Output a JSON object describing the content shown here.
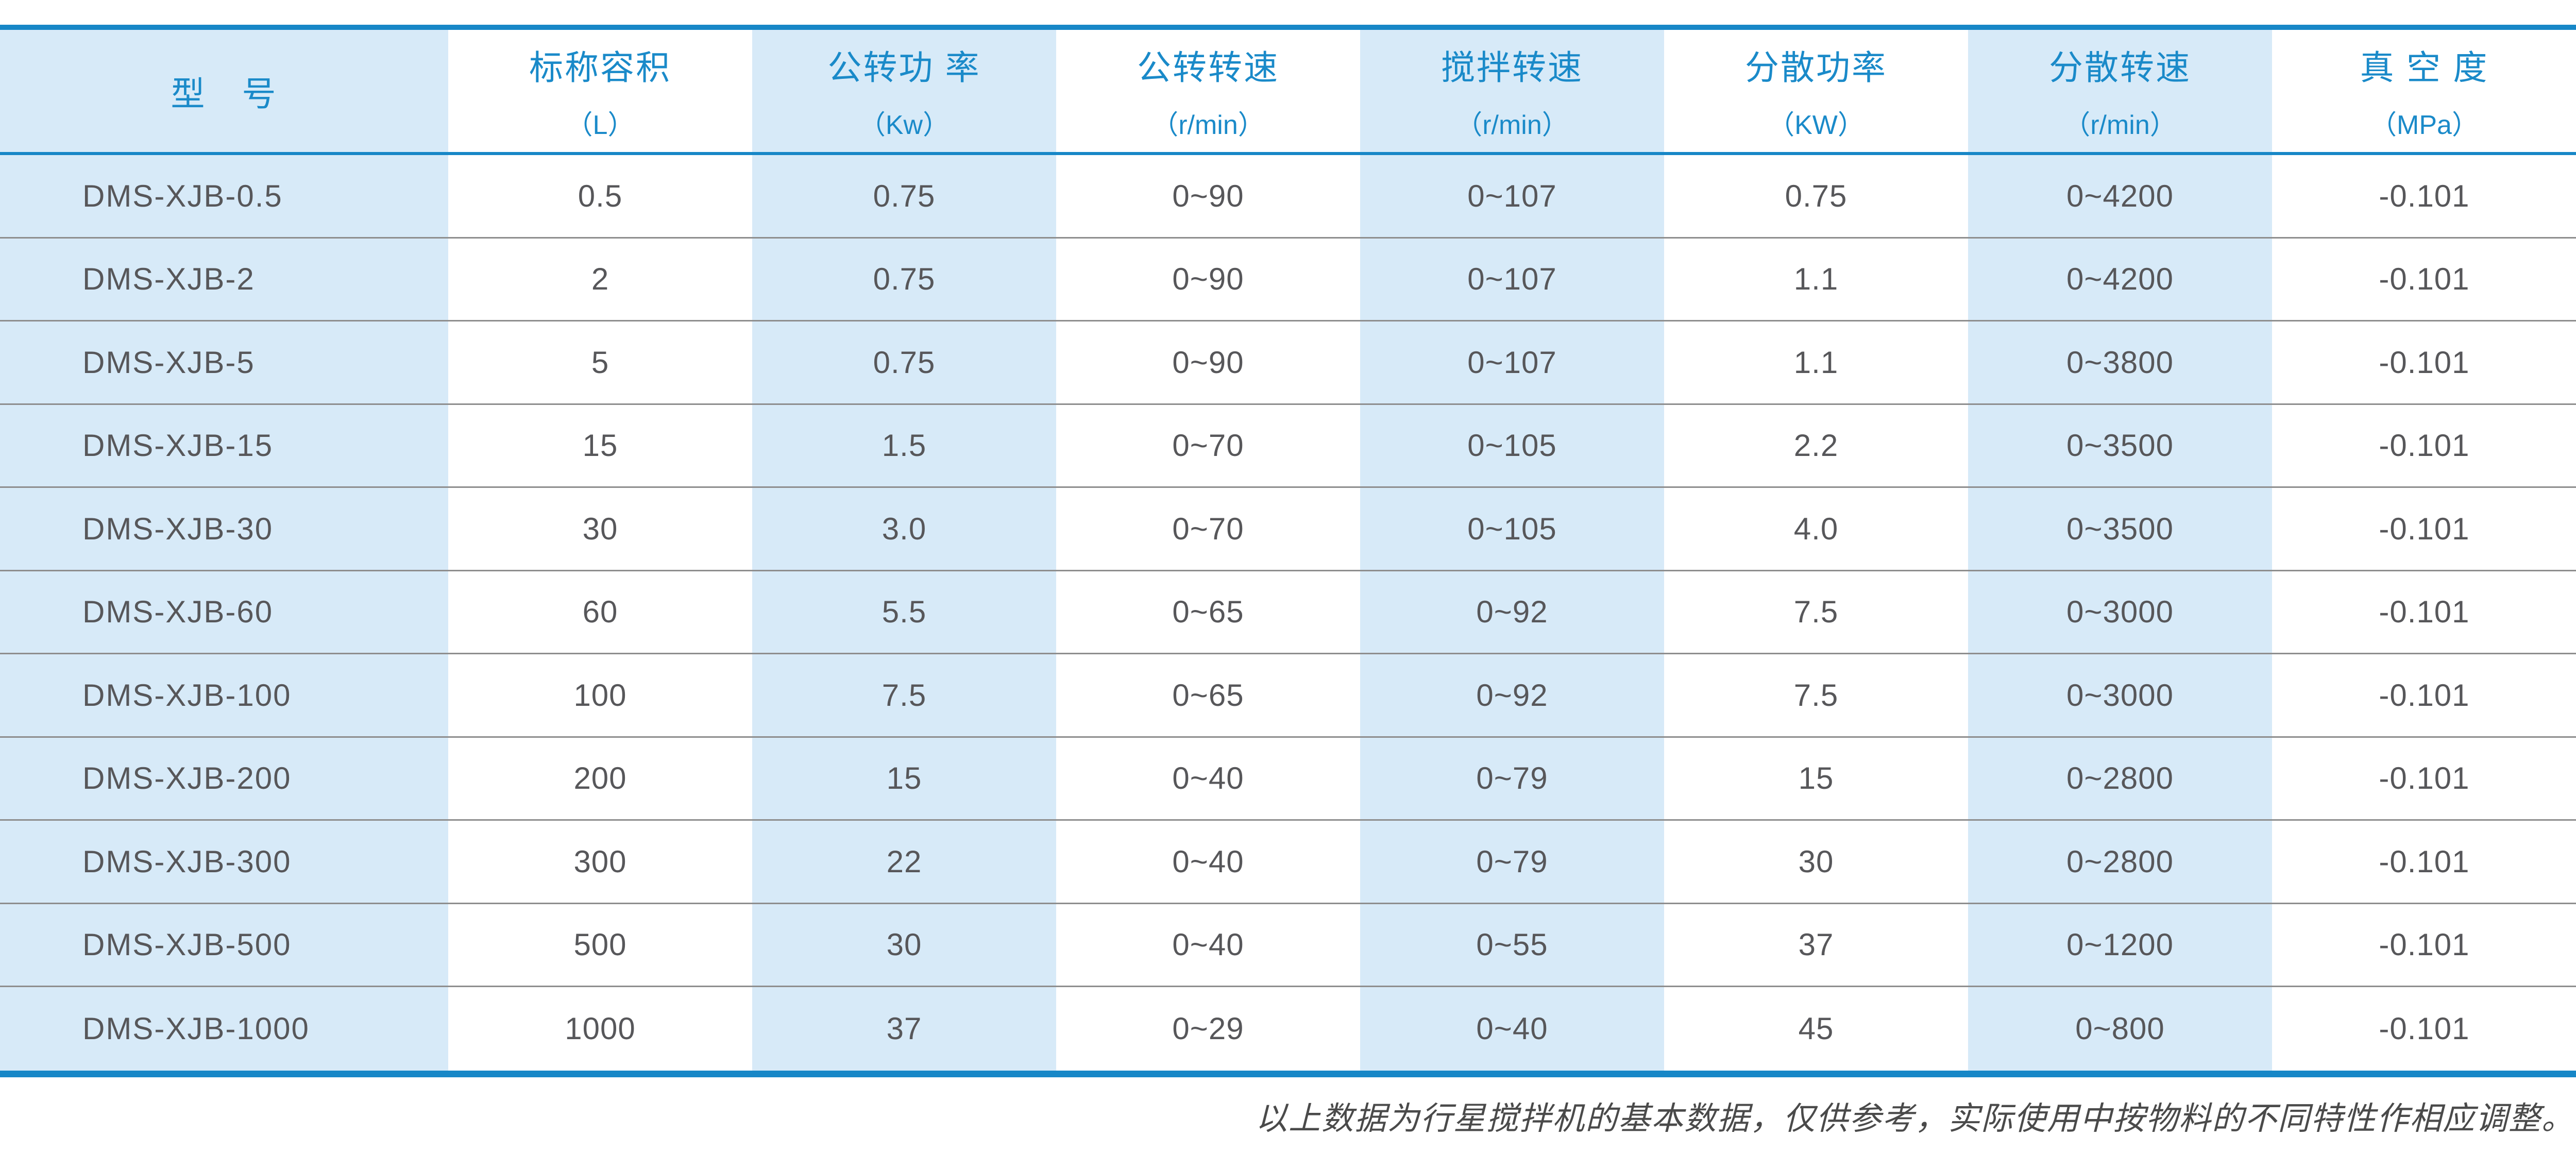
{
  "colors": {
    "accent": "#1a8ac9",
    "bar": "#1787c7",
    "stripe_blue": "#d7eaf8",
    "row_divider": "#8e8e8e",
    "body_text": "#57575a",
    "footer_text": "#4a4a4a"
  },
  "table": {
    "headers": [
      {
        "name": "型　号",
        "unit": ""
      },
      {
        "name": "标称容积",
        "unit": "（L）"
      },
      {
        "name": "公转功 率",
        "unit": "（Kw）"
      },
      {
        "name": "公转转速",
        "unit": "（r/min）"
      },
      {
        "name": "搅拌转速",
        "unit": "（r/min）"
      },
      {
        "name": "分散功率",
        "unit": "（KW）"
      },
      {
        "name": "分散转速",
        "unit": "（r/min）"
      },
      {
        "name": "真 空 度",
        "unit": "（MPa）"
      }
    ],
    "rows": [
      [
        "DMS-XJB-0.5",
        "0.5",
        "0.75",
        "0~90",
        "0~107",
        "0.75",
        "0~4200",
        "-0.101"
      ],
      [
        "DMS-XJB-2",
        "2",
        "0.75",
        "0~90",
        "0~107",
        "1.1",
        "0~4200",
        "-0.101"
      ],
      [
        "DMS-XJB-5",
        "5",
        "0.75",
        "0~90",
        "0~107",
        "1.1",
        "0~3800",
        "-0.101"
      ],
      [
        "DMS-XJB-15",
        "15",
        "1.5",
        "0~70",
        "0~105",
        "2.2",
        "0~3500",
        "-0.101"
      ],
      [
        "DMS-XJB-30",
        "30",
        "3.0",
        "0~70",
        "0~105",
        "4.0",
        "0~3500",
        "-0.101"
      ],
      [
        "DMS-XJB-60",
        "60",
        "5.5",
        "0~65",
        "0~92",
        "7.5",
        "0~3000",
        "-0.101"
      ],
      [
        "DMS-XJB-100",
        "100",
        "7.5",
        "0~65",
        "0~92",
        "7.5",
        "0~3000",
        "-0.101"
      ],
      [
        "DMS-XJB-200",
        "200",
        "15",
        "0~40",
        "0~79",
        "15",
        "0~2800",
        "-0.101"
      ],
      [
        "DMS-XJB-300",
        "300",
        "22",
        "0~40",
        "0~79",
        "30",
        "0~2800",
        "-0.101"
      ],
      [
        "DMS-XJB-500",
        "500",
        "30",
        "0~40",
        "0~55",
        "37",
        "0~1200",
        "-0.101"
      ],
      [
        "DMS-XJB-1000",
        "1000",
        "37",
        "0~29",
        "0~40",
        "45",
        "0~800",
        "-0.101"
      ]
    ]
  },
  "footer": {
    "note": "以上数据为行星搅拌机的基本数据，仅供参考，实际使用中按物料的不同特性作相应调整。"
  }
}
